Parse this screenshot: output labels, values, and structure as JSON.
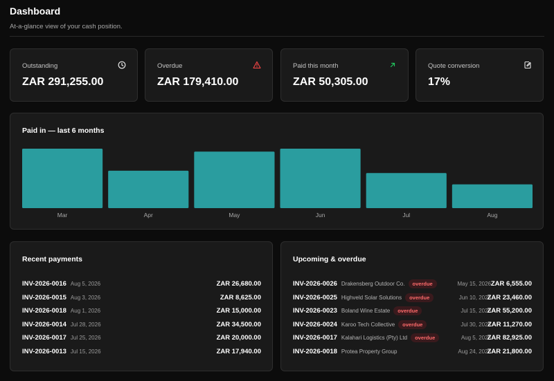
{
  "header": {
    "title": "Dashboard",
    "subtitle": "At-a-glance view of your cash position."
  },
  "stats": [
    {
      "label": "Outstanding",
      "value": "ZAR 291,255.00",
      "icon": "clock-icon",
      "icon_color": "#e6e6e6"
    },
    {
      "label": "Overdue",
      "value": "ZAR 179,410.00",
      "icon": "warning-icon",
      "icon_color": "#ef4444"
    },
    {
      "label": "Paid this month",
      "value": "ZAR 50,305.00",
      "icon": "arrow-up-right-icon",
      "icon_color": "#22c55e"
    },
    {
      "label": "Quote conversion",
      "value": "17%",
      "icon": "document-edit-icon",
      "icon_color": "#e6e6e6"
    }
  ],
  "chart": {
    "title": "Paid in — last 6 months"
  },
  "chart_data": {
    "type": "bar",
    "title": "Paid in — last 6 months",
    "categories": [
      "Mar",
      "Apr",
      "May",
      "Jun",
      "Jul",
      "Aug"
    ],
    "values": [
      100,
      63,
      95,
      100,
      59,
      40
    ],
    "xlabel": "",
    "ylabel": "",
    "ylim": [
      0,
      100
    ],
    "grid": false,
    "bar_color": "#2a9d9f"
  },
  "recent_payments": {
    "title": "Recent payments",
    "rows": [
      {
        "invoice": "INV-2026-0016",
        "date": "Aug 5, 2026",
        "amount": "ZAR 26,680.00"
      },
      {
        "invoice": "INV-2026-0015",
        "date": "Aug 3, 2026",
        "amount": "ZAR 8,625.00"
      },
      {
        "invoice": "INV-2026-0018",
        "date": "Aug 1, 2026",
        "amount": "ZAR 15,000.00"
      },
      {
        "invoice": "INV-2026-0014",
        "date": "Jul 28, 2026",
        "amount": "ZAR 34,500.00"
      },
      {
        "invoice": "INV-2026-0017",
        "date": "Jul 25, 2026",
        "amount": "ZAR 20,000.00"
      },
      {
        "invoice": "INV-2026-0013",
        "date": "Jul 15, 2026",
        "amount": "ZAR 17,940.00"
      }
    ]
  },
  "upcoming": {
    "title": "Upcoming & overdue",
    "badge_color": "#ff6b6b",
    "rows": [
      {
        "invoice": "INV-2026-0026",
        "client": "Drakensberg Outdoor Co.",
        "badge": "overdue",
        "date": "May 15, 2026",
        "amount": "ZAR 6,555.00"
      },
      {
        "invoice": "INV-2026-0025",
        "client": "Highveld Solar Solutions",
        "badge": "overdue",
        "date": "Jun 10, 2026",
        "amount": "ZAR 23,460.00"
      },
      {
        "invoice": "INV-2026-0023",
        "client": "Boland Wine Estate",
        "badge": "overdue",
        "date": "Jul 15, 2026",
        "amount": "ZAR 55,200.00"
      },
      {
        "invoice": "INV-2026-0024",
        "client": "Karoo Tech Collective",
        "badge": "overdue",
        "date": "Jul 30, 2026",
        "amount": "ZAR 11,270.00"
      },
      {
        "invoice": "INV-2026-0017",
        "client": "Kalahari Logistics (Pty) Ltd",
        "badge": "overdue",
        "date": "Aug 5, 2026",
        "amount": "ZAR 82,925.00"
      },
      {
        "invoice": "INV-2026-0018",
        "client": "Protea Property Group",
        "badge": "",
        "date": "Aug 24, 2026",
        "amount": "ZAR 21,800.00"
      }
    ]
  }
}
